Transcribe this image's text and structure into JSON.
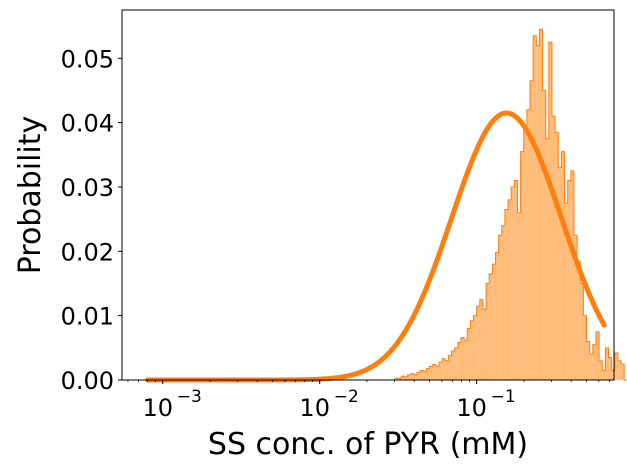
{
  "chart_data": {
    "type": "histogram",
    "title": "",
    "xlabel": "SS conc. of PYR (mM)",
    "ylabel": "Probability",
    "xscale": "log",
    "xlim": [
      0.00055,
      0.75
    ],
    "ylim": [
      0.0,
      0.0575
    ],
    "grid": false,
    "legend": "none",
    "x_ticks": [
      {
        "value": 0.001,
        "base": "10",
        "exp": "−3"
      },
      {
        "value": 0.01,
        "base": "10",
        "exp": "−2"
      },
      {
        "value": 0.1,
        "base": "10",
        "exp": "−1"
      }
    ],
    "y_ticks": [
      {
        "value": 0.0,
        "label": "0.00"
      },
      {
        "value": 0.01,
        "label": "0.01"
      },
      {
        "value": 0.02,
        "label": "0.02"
      },
      {
        "value": 0.03,
        "label": "0.03"
      },
      {
        "value": 0.04,
        "label": "0.04"
      },
      {
        "value": 0.05,
        "label": "0.05"
      }
    ],
    "histogram": {
      "fill_color": "#ffbb78",
      "edge_color": "#ff7f0e",
      "bin_edges_log10_start": -3.1,
      "bin_width_log10": 0.02,
      "probabilities": [
        0,
        0,
        0,
        0,
        0,
        0,
        0,
        0,
        0,
        0,
        0,
        0,
        0,
        0,
        0,
        0,
        0,
        0,
        0,
        0,
        0,
        0,
        0,
        0,
        0,
        0,
        0,
        0,
        0,
        0,
        0,
        0,
        0,
        0,
        0,
        0,
        0,
        0,
        0,
        0,
        0,
        0,
        0,
        0,
        0,
        0,
        0,
        0,
        0,
        0,
        0,
        0,
        0,
        0,
        0,
        0,
        0,
        0,
        0,
        0,
        0,
        0,
        0,
        0,
        0,
        0,
        0,
        0,
        0,
        0,
        0,
        0,
        0,
        0,
        0,
        0,
        0,
        0,
        0,
        0.0003,
        0.0003,
        0.0006,
        0.0005,
        0.0008,
        0.001,
        0.0009,
        0.0012,
        0.0015,
        0.0014,
        0.0018,
        0.0021,
        0.0024,
        0.0022,
        0.0028,
        0.0033,
        0.003,
        0.0038,
        0.0045,
        0.005,
        0.0058,
        0.0066,
        0.0062,
        0.008,
        0.0092,
        0.01,
        0.0115,
        0.0125,
        0.011,
        0.015,
        0.0165,
        0.018,
        0.0198,
        0.0225,
        0.024,
        0.0265,
        0.028,
        0.03,
        0.031,
        0.026,
        0.0355,
        0.0395,
        0.042,
        0.0465,
        0.0535,
        0.052,
        0.0545,
        0.045,
        0.0375,
        0.0525,
        0.041,
        0.0385,
        0.033,
        0.0355,
        0.0275,
        0.031,
        0.0325,
        0.0225,
        0.0185,
        0.015,
        0.01,
        0.006,
        0.004,
        0.0055,
        0.0075,
        0.003,
        0.0015,
        0.005,
        0.0035,
        0.0015,
        0.0042,
        0.003,
        0.0025,
        0
      ]
    },
    "fit_curve": {
      "color": "#ff7f0e",
      "type": "lognormal",
      "peak_x": 0.155,
      "peak_y": 0.0415,
      "x_range": [
        0.0008,
        0.65
      ]
    }
  }
}
